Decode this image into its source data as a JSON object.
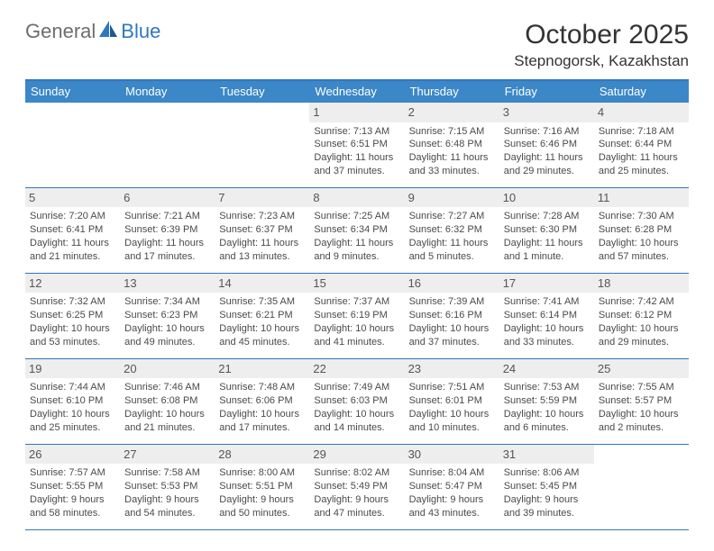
{
  "logo": {
    "part1": "General",
    "part2": "Blue"
  },
  "title": "October 2025",
  "location": "Stepnogorsk, Kazakhstan",
  "colors": {
    "brand_blue": "#2f78bf",
    "header_blue": "#3b87c8",
    "logo_gray": "#6d6d6d",
    "text": "#333333",
    "cell_text": "#4a4a4a",
    "daynum_bg": "#eeeeee",
    "daynum_color": "#555555",
    "white": "#ffffff"
  },
  "day_names": [
    "Sunday",
    "Monday",
    "Tuesday",
    "Wednesday",
    "Thursday",
    "Friday",
    "Saturday"
  ],
  "weeks": [
    [
      {
        "empty": true
      },
      {
        "empty": true
      },
      {
        "empty": true
      },
      {
        "day": "1",
        "sunrise": "Sunrise: 7:13 AM",
        "sunset": "Sunset: 6:51 PM",
        "daylight1": "Daylight: 11 hours",
        "daylight2": "and 37 minutes."
      },
      {
        "day": "2",
        "sunrise": "Sunrise: 7:15 AM",
        "sunset": "Sunset: 6:48 PM",
        "daylight1": "Daylight: 11 hours",
        "daylight2": "and 33 minutes."
      },
      {
        "day": "3",
        "sunrise": "Sunrise: 7:16 AM",
        "sunset": "Sunset: 6:46 PM",
        "daylight1": "Daylight: 11 hours",
        "daylight2": "and 29 minutes."
      },
      {
        "day": "4",
        "sunrise": "Sunrise: 7:18 AM",
        "sunset": "Sunset: 6:44 PM",
        "daylight1": "Daylight: 11 hours",
        "daylight2": "and 25 minutes."
      }
    ],
    [
      {
        "day": "5",
        "sunrise": "Sunrise: 7:20 AM",
        "sunset": "Sunset: 6:41 PM",
        "daylight1": "Daylight: 11 hours",
        "daylight2": "and 21 minutes."
      },
      {
        "day": "6",
        "sunrise": "Sunrise: 7:21 AM",
        "sunset": "Sunset: 6:39 PM",
        "daylight1": "Daylight: 11 hours",
        "daylight2": "and 17 minutes."
      },
      {
        "day": "7",
        "sunrise": "Sunrise: 7:23 AM",
        "sunset": "Sunset: 6:37 PM",
        "daylight1": "Daylight: 11 hours",
        "daylight2": "and 13 minutes."
      },
      {
        "day": "8",
        "sunrise": "Sunrise: 7:25 AM",
        "sunset": "Sunset: 6:34 PM",
        "daylight1": "Daylight: 11 hours",
        "daylight2": "and 9 minutes."
      },
      {
        "day": "9",
        "sunrise": "Sunrise: 7:27 AM",
        "sunset": "Sunset: 6:32 PM",
        "daylight1": "Daylight: 11 hours",
        "daylight2": "and 5 minutes."
      },
      {
        "day": "10",
        "sunrise": "Sunrise: 7:28 AM",
        "sunset": "Sunset: 6:30 PM",
        "daylight1": "Daylight: 11 hours",
        "daylight2": "and 1 minute."
      },
      {
        "day": "11",
        "sunrise": "Sunrise: 7:30 AM",
        "sunset": "Sunset: 6:28 PM",
        "daylight1": "Daylight: 10 hours",
        "daylight2": "and 57 minutes."
      }
    ],
    [
      {
        "day": "12",
        "sunrise": "Sunrise: 7:32 AM",
        "sunset": "Sunset: 6:25 PM",
        "daylight1": "Daylight: 10 hours",
        "daylight2": "and 53 minutes."
      },
      {
        "day": "13",
        "sunrise": "Sunrise: 7:34 AM",
        "sunset": "Sunset: 6:23 PM",
        "daylight1": "Daylight: 10 hours",
        "daylight2": "and 49 minutes."
      },
      {
        "day": "14",
        "sunrise": "Sunrise: 7:35 AM",
        "sunset": "Sunset: 6:21 PM",
        "daylight1": "Daylight: 10 hours",
        "daylight2": "and 45 minutes."
      },
      {
        "day": "15",
        "sunrise": "Sunrise: 7:37 AM",
        "sunset": "Sunset: 6:19 PM",
        "daylight1": "Daylight: 10 hours",
        "daylight2": "and 41 minutes."
      },
      {
        "day": "16",
        "sunrise": "Sunrise: 7:39 AM",
        "sunset": "Sunset: 6:16 PM",
        "daylight1": "Daylight: 10 hours",
        "daylight2": "and 37 minutes."
      },
      {
        "day": "17",
        "sunrise": "Sunrise: 7:41 AM",
        "sunset": "Sunset: 6:14 PM",
        "daylight1": "Daylight: 10 hours",
        "daylight2": "and 33 minutes."
      },
      {
        "day": "18",
        "sunrise": "Sunrise: 7:42 AM",
        "sunset": "Sunset: 6:12 PM",
        "daylight1": "Daylight: 10 hours",
        "daylight2": "and 29 minutes."
      }
    ],
    [
      {
        "day": "19",
        "sunrise": "Sunrise: 7:44 AM",
        "sunset": "Sunset: 6:10 PM",
        "daylight1": "Daylight: 10 hours",
        "daylight2": "and 25 minutes."
      },
      {
        "day": "20",
        "sunrise": "Sunrise: 7:46 AM",
        "sunset": "Sunset: 6:08 PM",
        "daylight1": "Daylight: 10 hours",
        "daylight2": "and 21 minutes."
      },
      {
        "day": "21",
        "sunrise": "Sunrise: 7:48 AM",
        "sunset": "Sunset: 6:06 PM",
        "daylight1": "Daylight: 10 hours",
        "daylight2": "and 17 minutes."
      },
      {
        "day": "22",
        "sunrise": "Sunrise: 7:49 AM",
        "sunset": "Sunset: 6:03 PM",
        "daylight1": "Daylight: 10 hours",
        "daylight2": "and 14 minutes."
      },
      {
        "day": "23",
        "sunrise": "Sunrise: 7:51 AM",
        "sunset": "Sunset: 6:01 PM",
        "daylight1": "Daylight: 10 hours",
        "daylight2": "and 10 minutes."
      },
      {
        "day": "24",
        "sunrise": "Sunrise: 7:53 AM",
        "sunset": "Sunset: 5:59 PM",
        "daylight1": "Daylight: 10 hours",
        "daylight2": "and 6 minutes."
      },
      {
        "day": "25",
        "sunrise": "Sunrise: 7:55 AM",
        "sunset": "Sunset: 5:57 PM",
        "daylight1": "Daylight: 10 hours",
        "daylight2": "and 2 minutes."
      }
    ],
    [
      {
        "day": "26",
        "sunrise": "Sunrise: 7:57 AM",
        "sunset": "Sunset: 5:55 PM",
        "daylight1": "Daylight: 9 hours",
        "daylight2": "and 58 minutes."
      },
      {
        "day": "27",
        "sunrise": "Sunrise: 7:58 AM",
        "sunset": "Sunset: 5:53 PM",
        "daylight1": "Daylight: 9 hours",
        "daylight2": "and 54 minutes."
      },
      {
        "day": "28",
        "sunrise": "Sunrise: 8:00 AM",
        "sunset": "Sunset: 5:51 PM",
        "daylight1": "Daylight: 9 hours",
        "daylight2": "and 50 minutes."
      },
      {
        "day": "29",
        "sunrise": "Sunrise: 8:02 AM",
        "sunset": "Sunset: 5:49 PM",
        "daylight1": "Daylight: 9 hours",
        "daylight2": "and 47 minutes."
      },
      {
        "day": "30",
        "sunrise": "Sunrise: 8:04 AM",
        "sunset": "Sunset: 5:47 PM",
        "daylight1": "Daylight: 9 hours",
        "daylight2": "and 43 minutes."
      },
      {
        "day": "31",
        "sunrise": "Sunrise: 8:06 AM",
        "sunset": "Sunset: 5:45 PM",
        "daylight1": "Daylight: 9 hours",
        "daylight2": "and 39 minutes."
      },
      {
        "empty": true
      }
    ]
  ]
}
